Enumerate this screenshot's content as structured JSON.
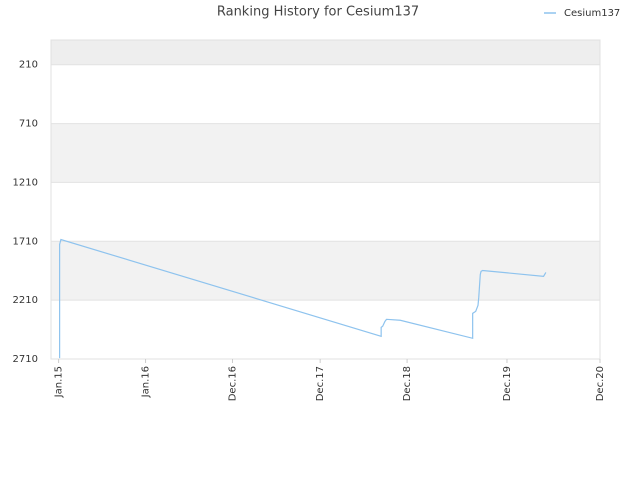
{
  "chart_data": {
    "type": "line",
    "title": "Ranking History for Cesium137",
    "x": [
      0.13,
      0.13,
      0.3,
      42.3,
      42.3,
      42.5,
      42.8,
      43.0,
      44.8,
      54.3,
      54.3,
      54.7,
      55.0,
      55.1,
      55.3,
      55.4,
      55.6,
      63.6,
      63.9
    ],
    "series": [
      {
        "name": "Cesium137",
        "color": "#8ec3ee",
        "values": [
          2703,
          1737,
          1695,
          2517,
          2441,
          2432,
          2390,
          2373,
          2381,
          2534,
          2322,
          2305,
          2254,
          2186,
          1992,
          1966,
          1958,
          2008,
          1975
        ]
      }
    ],
    "xlim": [
      -1,
      71
    ],
    "xticks": [
      {
        "value": 0,
        "label": "Jan.15"
      },
      {
        "value": 11.4,
        "label": "Jan.16"
      },
      {
        "value": 22.8,
        "label": "Dec.16"
      },
      {
        "value": 34.3,
        "label": "Dec.17"
      },
      {
        "value": 45.7,
        "label": "Dec.18"
      },
      {
        "value": 58.8,
        "label": "Dec.19"
      },
      {
        "value": 71,
        "label": "Dec.20"
      }
    ],
    "ylim": [
      2710,
      0
    ],
    "yticks": [
      210,
      710,
      1210,
      1710,
      2210,
      2710
    ],
    "legend": "top-right"
  }
}
